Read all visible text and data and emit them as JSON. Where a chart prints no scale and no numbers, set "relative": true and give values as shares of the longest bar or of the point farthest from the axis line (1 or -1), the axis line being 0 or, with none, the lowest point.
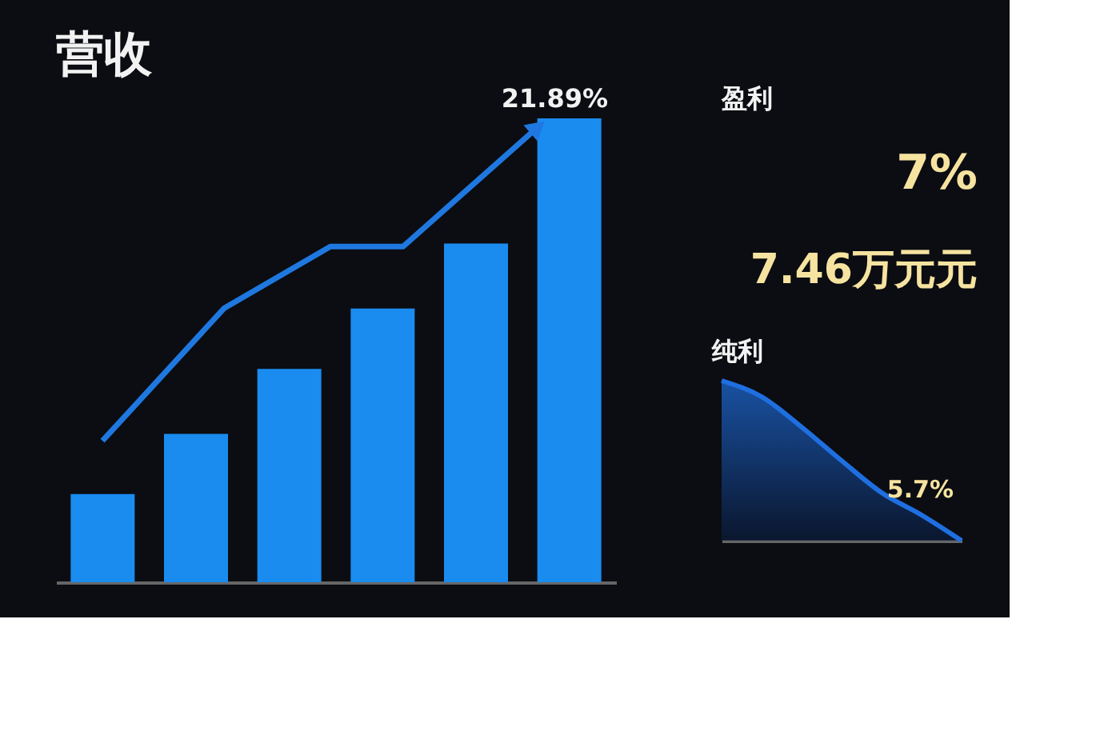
{
  "chart_data": [
    {
      "type": "bar",
      "title": "营收",
      "relative": true,
      "categories": [
        null,
        null,
        null,
        null,
        null,
        null
      ],
      "series": [
        {
          "type": "bar",
          "color": "#1a8cf0",
          "values": [
            0.19,
            0.32,
            0.46,
            0.59,
            0.73,
            1.0
          ]
        }
      ],
      "annotations": [
        "21.89%"
      ]
    },
    {
      "type": "other",
      "title": "盈利",
      "annotations": [
        "7%",
        "7.46万元元"
      ]
    },
    {
      "type": "area",
      "title": "纯利",
      "relative": true,
      "categories": [
        null,
        null,
        null,
        null,
        null,
        null,
        null
      ],
      "series": [
        {
          "color": "#1f6fe0",
          "values": [
            1.0,
            0.9,
            0.71,
            0.5,
            0.3,
            0.16,
            0.0
          ]
        }
      ],
      "annotations": [
        "5.7%"
      ]
    }
  ]
}
